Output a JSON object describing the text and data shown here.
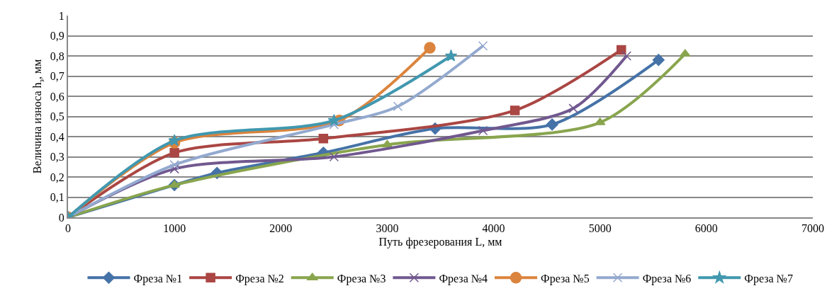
{
  "chart_data": {
    "type": "line",
    "xlabel": "Путь фрезерования L, мм",
    "ylabel": "Величина износа h$_{з}$, мм",
    "xlim": [
      0,
      7000
    ],
    "xticks": [
      0,
      1000,
      2000,
      3000,
      4000,
      5000,
      6000,
      7000
    ],
    "ylim": [
      0,
      1
    ],
    "yticks": [
      0,
      {
        "value": 0.1,
        "label": "0,1"
      },
      {
        "value": 0.2,
        "label": "0,2"
      },
      {
        "value": 0.3,
        "label": "0,3"
      },
      {
        "value": 0.4,
        "label": "0,4"
      },
      {
        "value": 0.5,
        "label": "0,5"
      },
      {
        "value": 0.6,
        "label": "0,6"
      },
      {
        "value": 0.7,
        "label": "0,7"
      },
      {
        "value": 0.8,
        "label": "0,8"
      },
      {
        "value": 0.9,
        "label": "0,9"
      },
      1
    ],
    "grid": "y",
    "legend": "bottom",
    "series": [
      {
        "name": "Фреза №1",
        "color": "#4572a7",
        "marker": "diamond",
        "x": [
          0,
          1000,
          1400,
          2400,
          3450,
          4550,
          5550
        ],
        "values": [
          0,
          0.16,
          0.22,
          0.32,
          0.44,
          0.46,
          0.78
        ]
      },
      {
        "name": "Фреза №2",
        "color": "#aa4643",
        "marker": "square",
        "x": [
          0,
          1000,
          2400,
          4200,
          5200
        ],
        "values": [
          0,
          0.32,
          0.39,
          0.53,
          0.83
        ]
      },
      {
        "name": "Фреза №3",
        "color": "#89a54e",
        "marker": "triangle",
        "x": [
          0,
          1000,
          3000,
          5000,
          5800
        ],
        "values": [
          0,
          0.16,
          0.36,
          0.47,
          0.81
        ]
      },
      {
        "name": "Фреза №4",
        "color": "#71588f",
        "marker": "cross",
        "x": [
          0,
          1000,
          2500,
          3900,
          4750,
          5250
        ],
        "values": [
          0,
          0.24,
          0.3,
          0.43,
          0.54,
          0.8
        ]
      },
      {
        "name": "Фреза №5",
        "color": "#db843d",
        "marker": "circle",
        "x": [
          0,
          1000,
          2550,
          3400
        ],
        "values": [
          0,
          0.37,
          0.48,
          0.84
        ]
      },
      {
        "name": "Фреза №6",
        "color": "#93a9cf",
        "marker": "cross",
        "x": [
          0,
          1000,
          2500,
          3100,
          3900
        ],
        "values": [
          0,
          0.26,
          0.46,
          0.55,
          0.85
        ]
      },
      {
        "name": "Фреза №7",
        "color": "#4198af",
        "marker": "star",
        "x": [
          0,
          1000,
          2500,
          3600
        ],
        "values": [
          0,
          0.38,
          0.48,
          0.8
        ]
      }
    ]
  }
}
